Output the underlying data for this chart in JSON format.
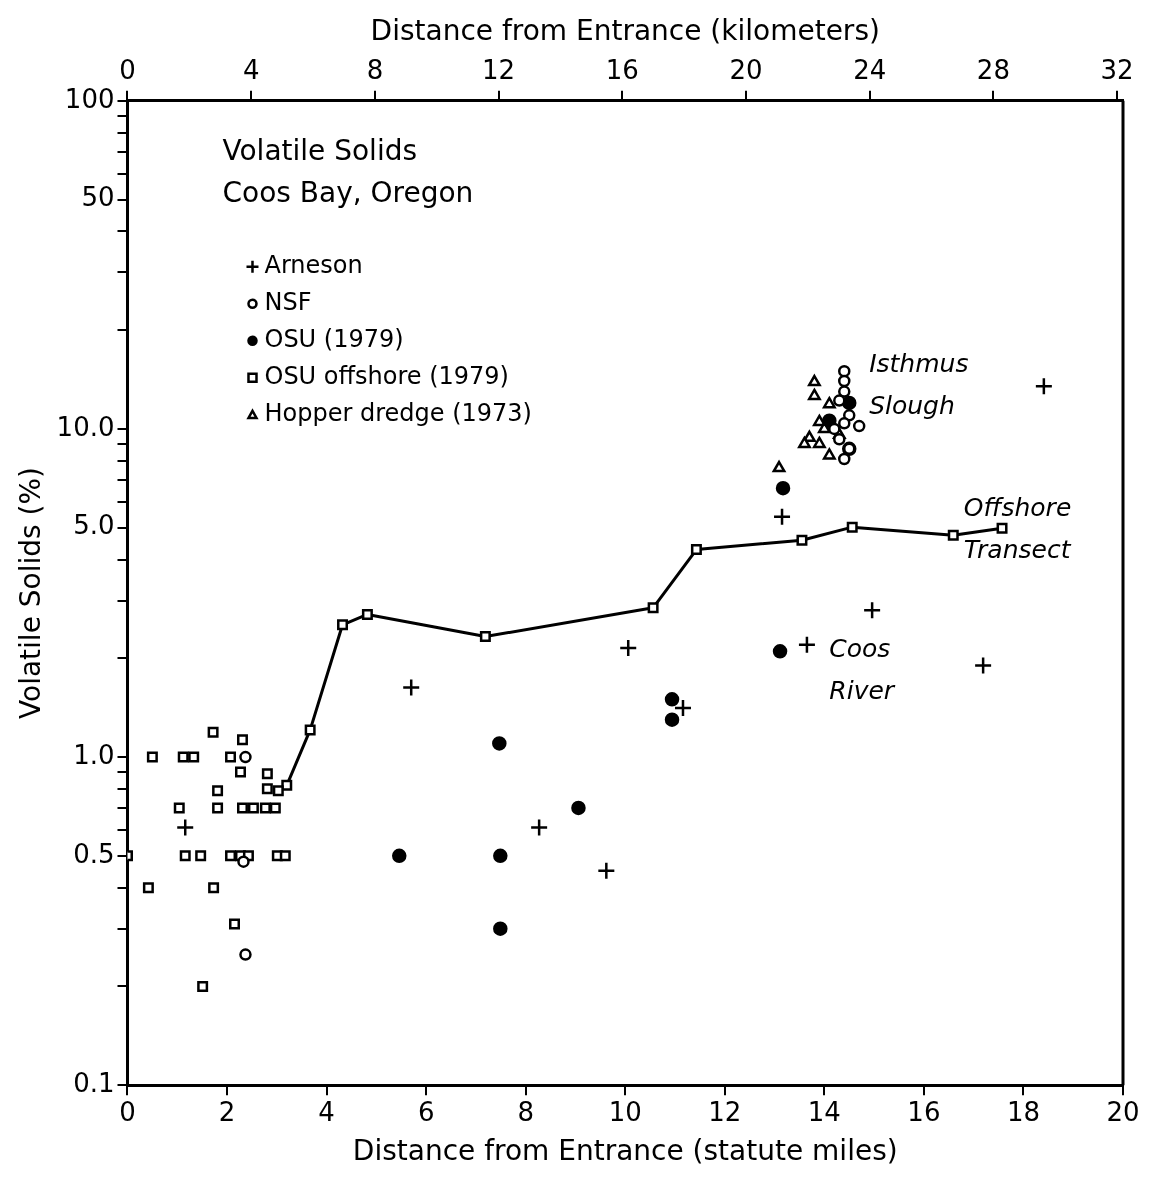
{
  "chart_data": {
    "type": "scatter",
    "title": "Volatile Solids",
    "subtitle": "Coos Bay, Oregon",
    "xlabel": "Distance from Entrance (statute miles)",
    "x2label": "Distance from Entrance (kilometers)",
    "ylabel": "Volatile Solids (%)",
    "xlim": [
      0,
      20
    ],
    "xticks": [
      0,
      2,
      4,
      6,
      8,
      10,
      12,
      14,
      16,
      18,
      20
    ],
    "x2lim": [
      0,
      32.19
    ],
    "x2ticks": [
      0,
      4,
      8,
      12,
      16,
      20,
      24,
      28,
      32
    ],
    "ylim": [
      0.1,
      100
    ],
    "yticks": [
      {
        "value": 0.1,
        "label": "0.1"
      },
      {
        "value": 0.2,
        "label": null
      },
      {
        "value": 0.3,
        "label": null
      },
      {
        "value": 0.4,
        "label": null
      },
      {
        "value": 0.5,
        "label": "0.5"
      },
      {
        "value": 0.6,
        "label": null
      },
      {
        "value": 0.7,
        "label": null
      },
      {
        "value": 0.8,
        "label": null
      },
      {
        "value": 0.9,
        "label": null
      },
      {
        "value": 1,
        "label": "1.0"
      },
      {
        "value": 2,
        "label": null
      },
      {
        "value": 3,
        "label": null
      },
      {
        "value": 4,
        "label": null
      },
      {
        "value": 5,
        "label": "5.0"
      },
      {
        "value": 6,
        "label": null
      },
      {
        "value": 7,
        "label": null
      },
      {
        "value": 8,
        "label": null
      },
      {
        "value": 9,
        "label": null
      },
      {
        "value": 10,
        "label": "10.0"
      },
      {
        "value": 20,
        "label": null
      },
      {
        "value": 30,
        "label": null
      },
      {
        "value": 40,
        "label": null
      },
      {
        "value": 50,
        "label": "50"
      },
      {
        "value": 60,
        "label": null
      },
      {
        "value": 70,
        "label": null
      },
      {
        "value": 80,
        "label": null
      },
      {
        "value": 90,
        "label": null
      },
      {
        "value": 100,
        "label": "100"
      }
    ],
    "log": "y",
    "grid": false,
    "legend": "top left",
    "series": [
      {
        "name": "Arneson",
        "marker": "cross",
        "color": "#000000",
        "x": [
          1.16,
          5.7,
          8.27,
          9.62,
          10.06,
          11.16,
          13.15,
          13.65,
          14.96,
          17.19,
          18.41
        ],
        "values": [
          0.61,
          1.63,
          0.61,
          0.45,
          2.15,
          1.41,
          5.4,
          2.2,
          2.8,
          1.9,
          13.5
        ]
      },
      {
        "name": "NSF",
        "marker": "circle",
        "color": "#000000",
        "x": [
          2.37,
          2.33,
          2.37,
          14.4,
          14.4,
          14.4,
          14.3,
          14.5,
          14.4,
          14.7,
          14.3,
          14.5,
          14.4,
          14.2
        ],
        "values": [
          1.0,
          0.48,
          0.25,
          15,
          14,
          13,
          12.2,
          11,
          10.4,
          10.2,
          9.3,
          8.7,
          8.1,
          10
        ]
      },
      {
        "name": "OSU (1979)",
        "marker": "circle",
        "color": "#000000",
        "x": [
          5.46,
          7.47,
          7.49,
          7.49,
          9.06,
          10.94,
          10.94,
          13.11,
          13.17,
          14.5,
          14.5,
          14.1
        ],
        "values": [
          0.5,
          1.1,
          0.5,
          0.3,
          0.7,
          1.5,
          1.3,
          2.1,
          6.6,
          12,
          8.7,
          10.6
        ]
      },
      {
        "name": "OSU offshore (1979)",
        "marker": "square",
        "color": "#000000",
        "x": [
          0,
          0.42,
          0.5,
          1.04,
          1.12,
          1.16,
          1.33,
          1.47,
          1.51,
          1.72,
          1.73,
          1.81,
          1.81,
          2.07,
          2.07,
          2.15,
          2.27,
          2.27,
          2.31,
          2.31,
          2.43,
          2.53,
          2.77,
          2.81,
          2.81,
          2.97,
          3.01,
          3.03,
          3.17
        ],
        "values": [
          0.5,
          0.4,
          1.0,
          0.7,
          1.0,
          0.5,
          1.0,
          0.5,
          0.2,
          1.19,
          0.4,
          0.79,
          0.7,
          1.0,
          0.5,
          0.31,
          0.9,
          0.5,
          1.13,
          0.7,
          0.5,
          0.7,
          0.7,
          0.89,
          0.8,
          0.7,
          0.5,
          0.79,
          0.5
        ]
      },
      {
        "name": "Hopper dredge (1973)",
        "marker": "triangle",
        "color": "#000000",
        "x": [
          13.09,
          13.8,
          13.8,
          14.1,
          13.9,
          14.0,
          13.7,
          13.9,
          14.1,
          14.3,
          13.6
        ],
        "values": [
          7.6,
          13.9,
          12.6,
          11.9,
          10.5,
          10,
          9.4,
          9,
          8.3,
          9.6,
          9
        ]
      },
      {
        "type": "line",
        "marker": "square",
        "color": "#000000",
        "x": [
          3.2,
          3.67,
          4.32,
          4.82,
          7.19,
          10.56,
          11.43,
          13.55,
          14.56,
          16.59,
          17.57
        ],
        "values": [
          0.82,
          1.21,
          2.53,
          2.72,
          2.33,
          2.85,
          4.29,
          4.58,
          5.02,
          4.74,
          4.98
        ]
      }
    ],
    "annotations": [
      "Isthmus Slough",
      "Offshore Transect",
      "Coos River"
    ]
  }
}
